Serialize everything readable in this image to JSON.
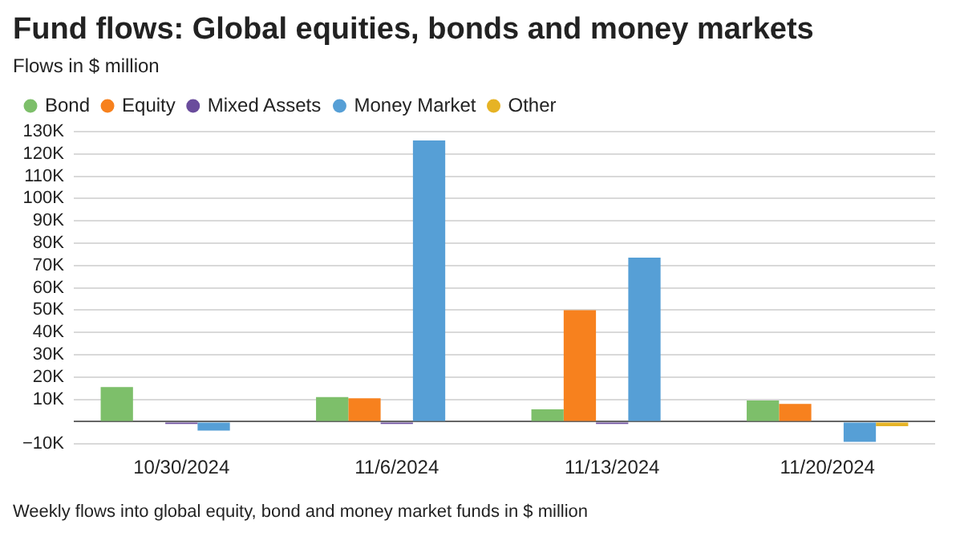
{
  "chart_data": {
    "type": "bar",
    "title": "Fund flows: Global equities, bonds and money markets",
    "subtitle": "Flows in $ million",
    "categories": [
      "10/30/2024",
      "11/6/2024",
      "11/13/2024",
      "11/20/2024"
    ],
    "series": [
      {
        "name": "Bond",
        "color": "#7dbf6a",
        "values": [
          15500,
          11000,
          5500,
          9500
        ]
      },
      {
        "name": "Equity",
        "color": "#f7811e",
        "values": [
          0,
          10500,
          50000,
          8000
        ]
      },
      {
        "name": "Mixed Assets",
        "color": "#6a4c9c",
        "values": [
          -1000,
          -1000,
          -1000,
          0
        ]
      },
      {
        "name": "Money Market",
        "color": "#569fd6",
        "values": [
          -4000,
          126000,
          73500,
          -9000
        ]
      },
      {
        "name": "Other",
        "color": "#e6b325",
        "values": [
          0,
          0,
          0,
          -2000
        ]
      }
    ],
    "ylim": [
      -10000,
      130000
    ],
    "yticks": [
      {
        "value": -10000,
        "label": "−10K"
      },
      {
        "value": 0,
        "label": null
      },
      {
        "value": 10000,
        "label": "10K"
      },
      {
        "value": 20000,
        "label": "20K"
      },
      {
        "value": 30000,
        "label": "30K"
      },
      {
        "value": 40000,
        "label": "40K"
      },
      {
        "value": 50000,
        "label": "50K"
      },
      {
        "value": 60000,
        "label": "60K"
      },
      {
        "value": 70000,
        "label": "70K"
      },
      {
        "value": 80000,
        "label": "80K"
      },
      {
        "value": 90000,
        "label": "90K"
      },
      {
        "value": 100000,
        "label": "100K"
      },
      {
        "value": 110000,
        "label": "110K"
      },
      {
        "value": 120000,
        "label": "120K"
      },
      {
        "value": 130000,
        "label": "130K"
      }
    ],
    "grid": "y",
    "legend": "top left",
    "marker": "circle",
    "annotations": [
      "Weekly flows into global equity, bond and money market funds in $ million"
    ]
  }
}
